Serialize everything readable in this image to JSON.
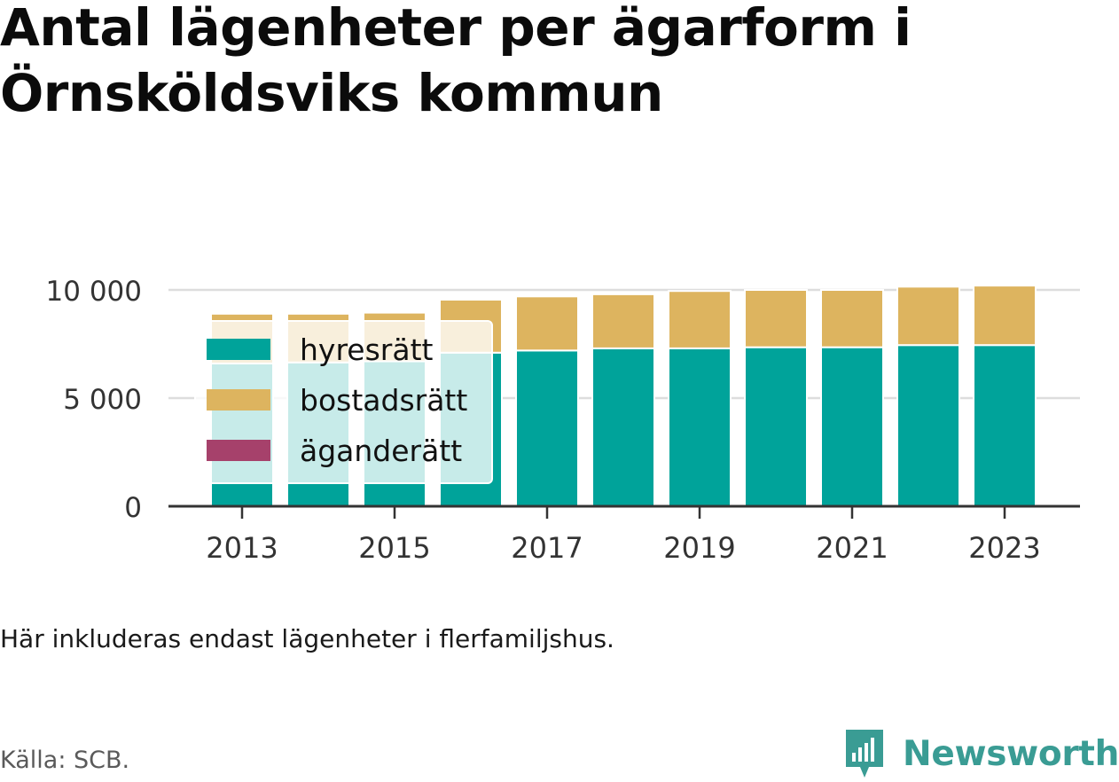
{
  "title": "Antal lägenheter per ägarform i Örnsköldsviks kommun",
  "note": "Här inkluderas endast lägenheter i flerfamiljshus.",
  "source": "Källa: SCB.",
  "brand": "Newsworthy",
  "colors": {
    "hyresratt": "#00a39a",
    "bostadsratt": "#ddb45f",
    "aganderatt": "#a6416b",
    "grid": "#dddddd",
    "axis": "#333333",
    "brand": "#3a9c94"
  },
  "chart_data": {
    "type": "bar",
    "stacked": true,
    "categories": [
      2013,
      2014,
      2015,
      2016,
      2017,
      2018,
      2019,
      2020,
      2021,
      2022,
      2023
    ],
    "series": [
      {
        "name": "hyresrätt",
        "color": "#00a39a",
        "values": [
          6600,
          6650,
          6700,
          7100,
          7200,
          7300,
          7300,
          7350,
          7350,
          7450,
          7450
        ]
      },
      {
        "name": "bostadsrätt",
        "color": "#ddb45f",
        "values": [
          2300,
          2250,
          2250,
          2450,
          2500,
          2500,
          2650,
          2650,
          2650,
          2700,
          2750
        ]
      },
      {
        "name": "äganderätt",
        "color": "#a6416b",
        "values": [
          0,
          0,
          0,
          0,
          0,
          0,
          0,
          0,
          0,
          0,
          0
        ]
      }
    ],
    "y_ticks": [
      0,
      5000,
      10000
    ],
    "y_tick_labels": [
      "0",
      "5 000",
      "10 000"
    ],
    "x_ticks": [
      2013,
      2015,
      2017,
      2019,
      2021,
      2023
    ],
    "x_tick_labels": [
      "2013",
      "2015",
      "2017",
      "2019",
      "2021",
      "2023"
    ],
    "ylim": [
      0,
      10000
    ],
    "grid": "horizontal",
    "legend_position": "top-left"
  }
}
